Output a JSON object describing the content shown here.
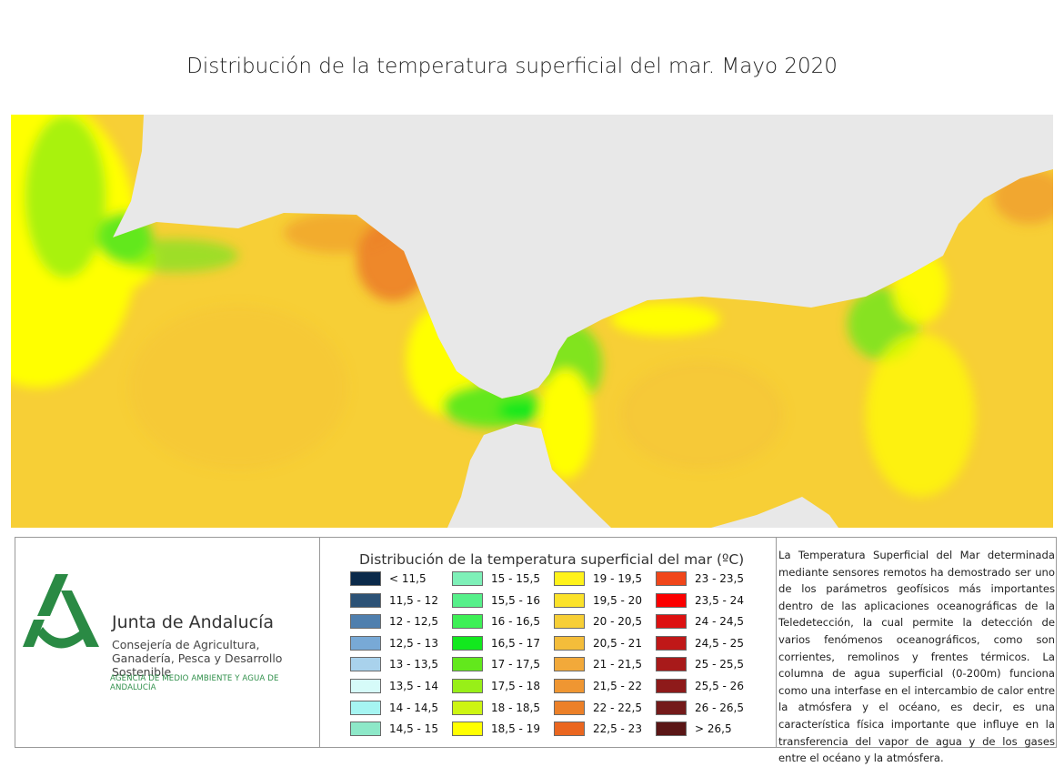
{
  "title": "Distribución de la temperatura superficial del mar. Mayo 2020",
  "logo": {
    "organization": "Junta de Andalucía",
    "department": "Consejería de Agricultura, Ganadería, Pesca y Desarrollo Sostenible",
    "agency": "AGENCIA DE MEDIO AMBIENTE Y AGUA DE ANDALUCÍA",
    "logo_color": "#2a8a44"
  },
  "legend": {
    "title": "Distribución de la temperatura superficial del mar (ºC)",
    "items": [
      {
        "label": "< 11,5",
        "color": "#0b2a4a"
      },
      {
        "label": "11,5 - 12",
        "color": "#2c5276"
      },
      {
        "label": "12 - 12,5",
        "color": "#4f7fae"
      },
      {
        "label": "12,5 - 13",
        "color": "#78a9d6"
      },
      {
        "label": "13 - 13,5",
        "color": "#a9d2ec"
      },
      {
        "label": "13,5 - 14",
        "color": "#d6fbf9"
      },
      {
        "label": "14 - 14,5",
        "color": "#a6f5f2"
      },
      {
        "label": "14,5 - 15",
        "color": "#8de8c8"
      },
      {
        "label": "15 - 15,5",
        "color": "#7ef0b8"
      },
      {
        "label": "15,5 - 16",
        "color": "#56f08a"
      },
      {
        "label": "16 - 16,5",
        "color": "#3ef056"
      },
      {
        "label": "16,5 - 17",
        "color": "#12e81e"
      },
      {
        "label": "17 - 17,5",
        "color": "#62e81c"
      },
      {
        "label": "17,5 - 18",
        "color": "#98ef18"
      },
      {
        "label": "18 - 18,5",
        "color": "#cdf512"
      },
      {
        "label": "18,5 - 19",
        "color": "#ffff00"
      },
      {
        "label": "19 - 19,5",
        "color": "#fff21a"
      },
      {
        "label": "19,5 - 20",
        "color": "#fbe22a"
      },
      {
        "label": "20 - 20,5",
        "color": "#f7cf36"
      },
      {
        "label": "20,5 - 21",
        "color": "#f4bd3a"
      },
      {
        "label": "21 - 21,5",
        "color": "#f2a93a"
      },
      {
        "label": "21,5 - 22",
        "color": "#ef9632"
      },
      {
        "label": "22 - 22,5",
        "color": "#ec8028"
      },
      {
        "label": "22,5 - 23",
        "color": "#ea661f"
      },
      {
        "label": "23 - 23,5",
        "color": "#f0461a"
      },
      {
        "label": "23,5 - 24",
        "color": "#fb0000"
      },
      {
        "label": "24 - 24,5",
        "color": "#dd1111"
      },
      {
        "label": "24,5 - 25",
        "color": "#c01818"
      },
      {
        "label": "25 - 25,5",
        "color": "#a81a1a"
      },
      {
        "label": "25,5 - 26",
        "color": "#8e1a1a"
      },
      {
        "label": "26 - 26,5",
        "color": "#741a1a"
      },
      {
        "label": "> 26,5",
        "color": "#5a1616"
      }
    ]
  },
  "description": "La Temperatura Superficial del Mar determinada mediante sensores remotos ha demostrado ser uno de los parámetros geofísicos más importantes dentro de las aplicaciones oceanográficas de la Teledetección, la cual permite la detección de varios fenómenos oceanográficos, como son corrientes, remolinos y frentes térmicos. La columna de agua superficial (0-200m) funciona como una interfase en el intercambio de calor entre la atmósfera y el océano, es decir, es una característica física importante que influye en la transferencia del vapor de agua y de los gases entre el océano y la atmósfera.",
  "map_colors": {
    "land": "#e8e8e8",
    "sea_base": "#f7cf36",
    "sea_warm": "#ec8028",
    "sea_cool_yellow": "#ffff00",
    "sea_green": "#62e81c",
    "sea_bright_green": "#12e81e"
  }
}
